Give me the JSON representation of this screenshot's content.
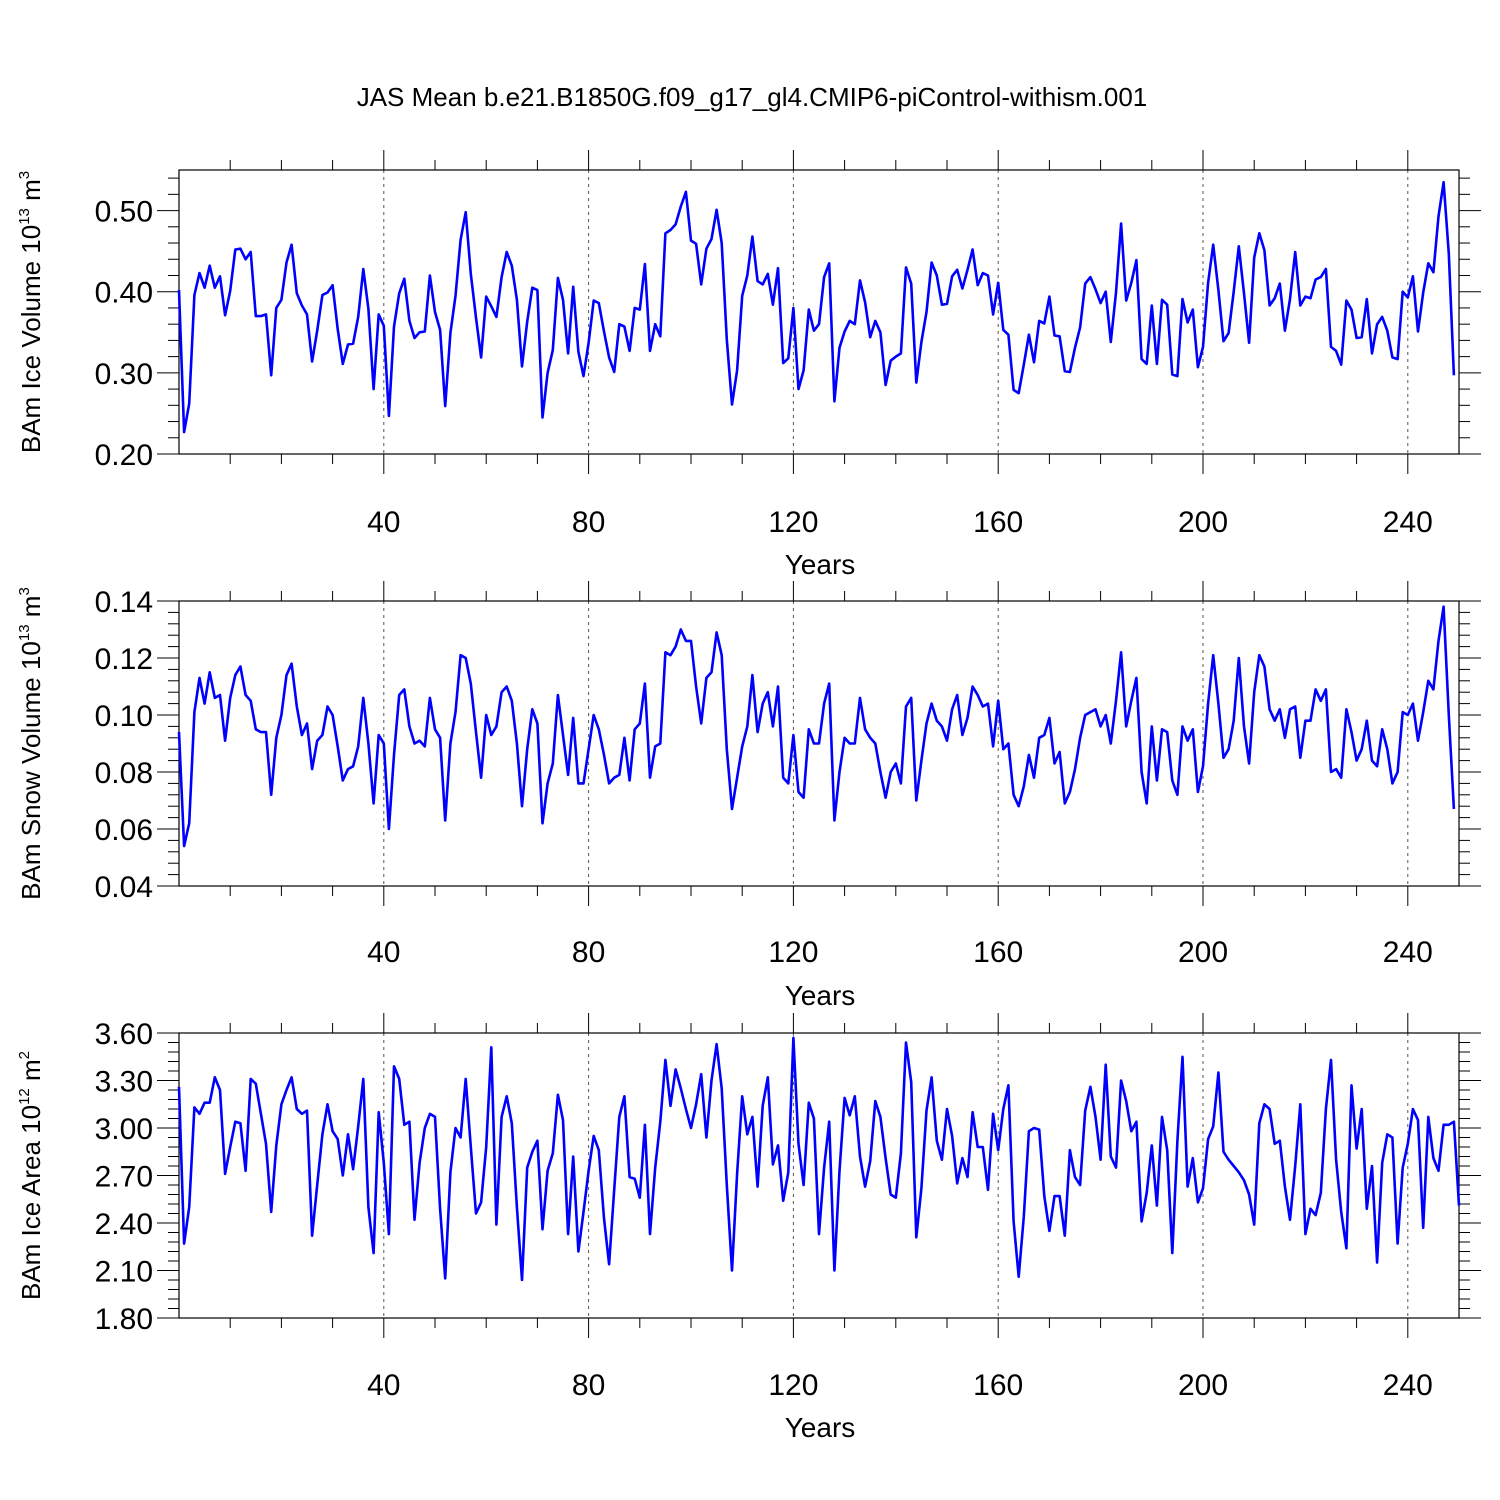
{
  "title": "JAS Mean b.e21.B1850G.f09_g17_gl4.CMIP6-piControl-withism.001",
  "series_color": "#0000ff",
  "chart_data": [
    {
      "type": "line",
      "name": "ice-volume",
      "ylabel_main": "BAm Ice Volume 10",
      "ylabel_exp": "13",
      "ylabel_unit": " m",
      "ylabel_unit_exp": "3",
      "xlabel": "Years",
      "xlim": [
        0,
        250
      ],
      "ylim": [
        0.2,
        0.55
      ],
      "x_ticks": [
        40,
        80,
        120,
        160,
        200,
        240
      ],
      "x_tick_labels": [
        "40",
        "80",
        "120",
        "160",
        "200",
        "240"
      ],
      "y_ticks": [
        0.2,
        0.3,
        0.4,
        0.5
      ],
      "y_tick_labels": [
        "0.20",
        "0.30",
        "0.40",
        "0.50"
      ],
      "grid_x": [
        40,
        80,
        120,
        160,
        200,
        240
      ],
      "x_start": 0,
      "values": [
        0.402,
        0.227,
        0.262,
        0.396,
        0.423,
        0.405,
        0.432,
        0.405,
        0.419,
        0.371,
        0.401,
        0.452,
        0.453,
        0.44,
        0.449,
        0.37,
        0.37,
        0.372,
        0.297,
        0.38,
        0.39,
        0.436,
        0.458,
        0.398,
        0.383,
        0.372,
        0.314,
        0.352,
        0.396,
        0.399,
        0.408,
        0.354,
        0.311,
        0.335,
        0.336,
        0.369,
        0.428,
        0.379,
        0.28,
        0.372,
        0.358,
        0.247,
        0.357,
        0.398,
        0.416,
        0.364,
        0.343,
        0.35,
        0.351,
        0.42,
        0.375,
        0.353,
        0.259,
        0.349,
        0.395,
        0.464,
        0.498,
        0.422,
        0.368,
        0.319,
        0.394,
        0.382,
        0.369,
        0.418,
        0.449,
        0.432,
        0.39,
        0.308,
        0.363,
        0.405,
        0.402,
        0.245,
        0.3,
        0.328,
        0.417,
        0.39,
        0.324,
        0.406,
        0.326,
        0.296,
        0.337,
        0.389,
        0.386,
        0.351,
        0.319,
        0.301,
        0.36,
        0.357,
        0.327,
        0.38,
        0.378,
        0.434,
        0.327,
        0.36,
        0.345,
        0.472,
        0.476,
        0.483,
        0.505,
        0.523,
        0.463,
        0.459,
        0.409,
        0.453,
        0.465,
        0.501,
        0.46,
        0.341,
        0.261,
        0.303,
        0.395,
        0.42,
        0.468,
        0.413,
        0.409,
        0.422,
        0.384,
        0.429,
        0.312,
        0.318,
        0.38,
        0.28,
        0.303,
        0.378,
        0.352,
        0.36,
        0.418,
        0.435,
        0.265,
        0.331,
        0.351,
        0.364,
        0.36,
        0.414,
        0.387,
        0.344,
        0.364,
        0.35,
        0.285,
        0.315,
        0.32,
        0.324,
        0.43,
        0.41,
        0.288,
        0.338,
        0.375,
        0.436,
        0.42,
        0.384,
        0.385,
        0.419,
        0.427,
        0.404,
        0.427,
        0.452,
        0.408,
        0.423,
        0.42,
        0.372,
        0.411,
        0.353,
        0.347,
        0.279,
        0.275,
        0.31,
        0.347,
        0.313,
        0.364,
        0.361,
        0.394,
        0.346,
        0.345,
        0.302,
        0.301,
        0.331,
        0.356,
        0.41,
        0.418,
        0.403,
        0.386,
        0.4,
        0.338,
        0.399,
        0.484,
        0.389,
        0.411,
        0.439,
        0.317,
        0.311,
        0.383,
        0.311,
        0.39,
        0.384,
        0.298,
        0.296,
        0.391,
        0.362,
        0.378,
        0.307,
        0.332,
        0.411,
        0.458,
        0.402,
        0.339,
        0.349,
        0.4,
        0.456,
        0.398,
        0.337,
        0.442,
        0.472,
        0.451,
        0.383,
        0.392,
        0.41,
        0.352,
        0.391,
        0.449,
        0.383,
        0.394,
        0.392,
        0.415,
        0.418,
        0.428,
        0.332,
        0.327,
        0.31,
        0.389,
        0.378,
        0.343,
        0.344,
        0.391,
        0.324,
        0.36,
        0.369,
        0.352,
        0.319,
        0.317,
        0.4,
        0.393,
        0.419,
        0.351,
        0.399,
        0.435,
        0.424,
        0.493,
        0.535,
        0.447,
        0.297
      ]
    },
    {
      "type": "line",
      "name": "snow-volume",
      "ylabel_main": "BAm Snow Volume 10",
      "ylabel_exp": "13",
      "ylabel_unit": " m",
      "ylabel_unit_exp": "3",
      "xlabel": "Years",
      "xlim": [
        0,
        250
      ],
      "ylim": [
        0.04,
        0.14
      ],
      "x_ticks": [
        40,
        80,
        120,
        160,
        200,
        240
      ],
      "x_tick_labels": [
        "40",
        "80",
        "120",
        "160",
        "200",
        "240"
      ],
      "y_ticks": [
        0.04,
        0.06,
        0.08,
        0.1,
        0.12,
        0.14
      ],
      "y_tick_labels": [
        "0.04",
        "0.06",
        "0.08",
        "0.10",
        "0.12",
        "0.14"
      ],
      "grid_x": [
        40,
        80,
        120,
        160,
        200,
        240
      ],
      "x_start": 0,
      "values": [
        0.094,
        0.054,
        0.062,
        0.101,
        0.113,
        0.104,
        0.115,
        0.106,
        0.107,
        0.091,
        0.106,
        0.114,
        0.117,
        0.107,
        0.105,
        0.095,
        0.094,
        0.094,
        0.072,
        0.092,
        0.1,
        0.114,
        0.118,
        0.103,
        0.093,
        0.097,
        0.081,
        0.091,
        0.093,
        0.103,
        0.1,
        0.089,
        0.077,
        0.081,
        0.082,
        0.089,
        0.106,
        0.09,
        0.069,
        0.093,
        0.09,
        0.06,
        0.086,
        0.107,
        0.109,
        0.096,
        0.09,
        0.091,
        0.089,
        0.106,
        0.095,
        0.092,
        0.063,
        0.09,
        0.101,
        0.121,
        0.12,
        0.111,
        0.094,
        0.078,
        0.1,
        0.093,
        0.096,
        0.108,
        0.11,
        0.105,
        0.09,
        0.068,
        0.088,
        0.102,
        0.097,
        0.062,
        0.076,
        0.083,
        0.107,
        0.093,
        0.079,
        0.099,
        0.076,
        0.076,
        0.088,
        0.1,
        0.095,
        0.086,
        0.076,
        0.078,
        0.079,
        0.092,
        0.077,
        0.095,
        0.097,
        0.111,
        0.078,
        0.089,
        0.09,
        0.122,
        0.121,
        0.124,
        0.13,
        0.126,
        0.126,
        0.11,
        0.097,
        0.113,
        0.115,
        0.129,
        0.121,
        0.088,
        0.067,
        0.078,
        0.089,
        0.096,
        0.114,
        0.094,
        0.104,
        0.108,
        0.096,
        0.11,
        0.078,
        0.076,
        0.093,
        0.073,
        0.071,
        0.095,
        0.09,
        0.09,
        0.104,
        0.111,
        0.063,
        0.08,
        0.092,
        0.09,
        0.09,
        0.106,
        0.095,
        0.092,
        0.09,
        0.08,
        0.071,
        0.08,
        0.083,
        0.076,
        0.103,
        0.106,
        0.07,
        0.084,
        0.097,
        0.104,
        0.098,
        0.096,
        0.091,
        0.102,
        0.107,
        0.093,
        0.099,
        0.11,
        0.107,
        0.103,
        0.104,
        0.089,
        0.105,
        0.088,
        0.09,
        0.072,
        0.068,
        0.075,
        0.086,
        0.078,
        0.092,
        0.093,
        0.099,
        0.083,
        0.087,
        0.069,
        0.073,
        0.081,
        0.092,
        0.1,
        0.101,
        0.102,
        0.096,
        0.1,
        0.09,
        0.105,
        0.122,
        0.096,
        0.105,
        0.113,
        0.08,
        0.069,
        0.096,
        0.077,
        0.095,
        0.094,
        0.077,
        0.072,
        0.096,
        0.091,
        0.095,
        0.073,
        0.082,
        0.104,
        0.121,
        0.104,
        0.085,
        0.088,
        0.098,
        0.12,
        0.096,
        0.083,
        0.108,
        0.121,
        0.117,
        0.102,
        0.098,
        0.102,
        0.092,
        0.102,
        0.103,
        0.085,
        0.098,
        0.098,
        0.109,
        0.105,
        0.109,
        0.08,
        0.081,
        0.078,
        0.102,
        0.094,
        0.084,
        0.088,
        0.098,
        0.084,
        0.082,
        0.095,
        0.088,
        0.076,
        0.08,
        0.101,
        0.1,
        0.104,
        0.091,
        0.101,
        0.112,
        0.109,
        0.126,
        0.138,
        0.1,
        0.067
      ]
    },
    {
      "type": "line",
      "name": "ice-area",
      "ylabel_main": "BAm Ice Area 10",
      "ylabel_exp": "12",
      "ylabel_unit": " m",
      "ylabel_unit_exp": "2",
      "xlabel": "Years",
      "xlim": [
        0,
        250
      ],
      "ylim": [
        1.8,
        3.6
      ],
      "x_ticks": [
        40,
        80,
        120,
        160,
        200,
        240
      ],
      "x_tick_labels": [
        "40",
        "80",
        "120",
        "160",
        "200",
        "240"
      ],
      "y_ticks": [
        1.8,
        2.1,
        2.4,
        2.7,
        3.0,
        3.3,
        3.6
      ],
      "y_tick_labels": [
        "1.80",
        "2.10",
        "2.40",
        "2.70",
        "3.00",
        "3.30",
        "3.60"
      ],
      "grid_x": [
        40,
        80,
        120,
        160,
        200,
        240
      ],
      "x_start": 0,
      "values": [
        3.26,
        2.27,
        2.5,
        3.13,
        3.09,
        3.16,
        3.16,
        3.32,
        3.24,
        2.71,
        2.88,
        3.04,
        3.03,
        2.73,
        3.31,
        3.28,
        3.09,
        2.9,
        2.47,
        2.89,
        3.15,
        3.24,
        3.32,
        3.12,
        3.09,
        3.11,
        2.32,
        2.64,
        2.96,
        3.15,
        2.98,
        2.93,
        2.7,
        2.96,
        2.74,
        3.01,
        3.31,
        2.5,
        2.21,
        3.1,
        2.78,
        2.33,
        3.39,
        3.31,
        3.02,
        3.04,
        2.42,
        2.78,
        3.0,
        3.09,
        3.07,
        2.49,
        2.05,
        2.72,
        3.0,
        2.94,
        3.31,
        2.88,
        2.46,
        2.53,
        2.88,
        3.51,
        2.39,
        3.07,
        3.2,
        3.03,
        2.5,
        2.04,
        2.75,
        2.85,
        2.92,
        2.36,
        2.73,
        2.84,
        3.21,
        3.05,
        2.33,
        2.82,
        2.22,
        2.47,
        2.73,
        2.95,
        2.86,
        2.43,
        2.14,
        2.61,
        3.07,
        3.2,
        2.69,
        2.68,
        2.56,
        3.02,
        2.33,
        2.75,
        3.04,
        3.43,
        3.14,
        3.37,
        3.25,
        3.12,
        3.0,
        3.15,
        3.34,
        2.94,
        3.3,
        3.53,
        3.25,
        2.64,
        2.1,
        2.71,
        3.2,
        2.96,
        3.07,
        2.63,
        3.14,
        3.32,
        2.77,
        2.89,
        2.54,
        2.72,
        3.57,
        2.9,
        2.64,
        3.16,
        3.06,
        2.33,
        2.75,
        3.04,
        2.1,
        2.73,
        3.19,
        3.08,
        3.2,
        2.82,
        2.63,
        2.79,
        3.17,
        3.07,
        2.81,
        2.58,
        2.56,
        2.84,
        3.54,
        3.29,
        2.31,
        2.62,
        3.11,
        3.32,
        2.92,
        2.8,
        3.12,
        2.95,
        2.65,
        2.81,
        2.69,
        3.1,
        2.88,
        2.88,
        2.61,
        3.09,
        2.86,
        3.12,
        3.27,
        2.41,
        2.06,
        2.44,
        2.98,
        3.0,
        2.99,
        2.57,
        2.35,
        2.57,
        2.57,
        2.32,
        2.86,
        2.69,
        2.64,
        3.11,
        3.26,
        3.07,
        2.8,
        3.4,
        2.82,
        2.75,
        3.3,
        3.17,
        2.98,
        3.04,
        2.41,
        2.59,
        2.89,
        2.51,
        3.07,
        2.86,
        2.21,
        2.92,
        3.45,
        2.63,
        2.81,
        2.53,
        2.62,
        2.93,
        3.01,
        3.35,
        2.85,
        2.8,
        2.76,
        2.72,
        2.67,
        2.58,
        2.39,
        3.03,
        3.15,
        3.12,
        2.9,
        2.92,
        2.63,
        2.42,
        2.76,
        3.15,
        2.33,
        2.49,
        2.45,
        2.59,
        3.12,
        3.43,
        2.8,
        2.47,
        2.24,
        3.27,
        2.87,
        3.12,
        2.49,
        2.76,
        2.15,
        2.78,
        2.96,
        2.94,
        2.27,
        2.75,
        2.9,
        3.12,
        3.05,
        2.37,
        3.07,
        2.81,
        2.73,
        3.02,
        3.02,
        3.04,
        2.51
      ]
    }
  ]
}
